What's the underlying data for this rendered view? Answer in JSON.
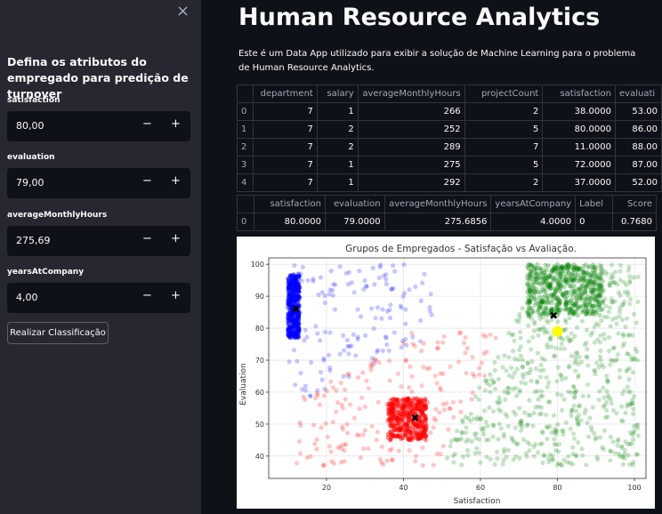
{
  "sidebar": {
    "close_icon": "×",
    "title": "Defina os atributos do empregado para predição de turnover",
    "inputs": [
      {
        "label": "satisfaction",
        "value": "80,00"
      },
      {
        "label": "evaluation",
        "value": "79,00"
      },
      {
        "label": "averageMonthlyHours",
        "value": "275,69"
      },
      {
        "label": "yearsAtCompany",
        "value": "4,00"
      }
    ],
    "minus": "−",
    "plus": "+",
    "button_label": "Realizar Classificação"
  },
  "main": {
    "title": "Human Resource Analytics",
    "description": "Este é um Data App utilizado para exibir a solução de Machine Learning para o problema de Human Resource Analytics."
  },
  "table1": {
    "columns": [
      "",
      "department",
      "salary",
      "averageMonthlyHours",
      "projectCount",
      "satisfaction",
      "evaluati"
    ],
    "rows": [
      [
        "0",
        "7",
        "1",
        "266",
        "2",
        "38.0000",
        "53.00"
      ],
      [
        "1",
        "7",
        "2",
        "252",
        "5",
        "80.0000",
        "86.00"
      ],
      [
        "2",
        "7",
        "2",
        "289",
        "7",
        "11.0000",
        "88.00"
      ],
      [
        "3",
        "7",
        "1",
        "275",
        "5",
        "72.0000",
        "87.00"
      ],
      [
        "4",
        "7",
        "1",
        "292",
        "2",
        "37.0000",
        "52.00"
      ]
    ]
  },
  "table2": {
    "columns": [
      "",
      "satisfaction",
      "evaluation",
      "averageMonthlyHours",
      "yearsAtCompany",
      "Label",
      "Score"
    ],
    "rows": [
      [
        "0",
        "80.0000",
        "79.0000",
        "275.6856",
        "4.0000",
        "0",
        "0.7680"
      ]
    ]
  },
  "chart_data": {
    "type": "scatter",
    "title": "Grupos de Empregados - Satisfação vs Avaliação.",
    "xlabel": "Satisfaction",
    "ylabel": "Evaluation",
    "xlim": [
      5,
      103
    ],
    "ylim": [
      33,
      102
    ],
    "xticks": [
      20,
      40,
      60,
      80,
      100
    ],
    "yticks": [
      40,
      50,
      60,
      70,
      80,
      90,
      100
    ],
    "grid": true,
    "clusters": [
      {
        "color": "#0000ff",
        "center": [
          12,
          86
        ],
        "dense": {
          "x": [
            10,
            13
          ],
          "y": [
            77,
            97
          ]
        },
        "spread": {
          "x": [
            10,
            48
          ],
          "y": [
            55,
            100
          ]
        }
      },
      {
        "color": "#ff0000",
        "center": [
          43,
          52
        ],
        "dense": {
          "x": [
            36,
            46
          ],
          "y": [
            45,
            58
          ]
        },
        "spread": {
          "x": [
            12,
            80
          ],
          "y": [
            37,
            80
          ]
        }
      },
      {
        "color": "#008000",
        "center": [
          79,
          84
        ],
        "dense": {
          "x": [
            72,
            92
          ],
          "y": [
            84,
            100
          ]
        },
        "spread": {
          "x": [
            50,
            101
          ],
          "y": [
            37,
            100
          ]
        }
      }
    ],
    "new_point": {
      "x": 80,
      "y": 79,
      "color": "#ffff00"
    }
  }
}
